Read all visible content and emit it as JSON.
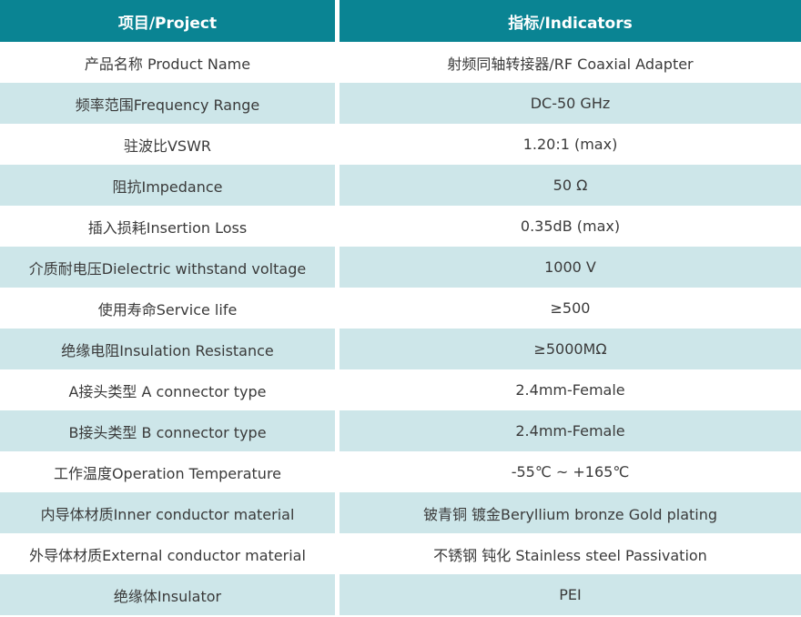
{
  "colors": {
    "header_bg": "#0a8493",
    "header_text": "#ffffff",
    "row_bg": "#ffffff",
    "row_alt_bg": "#cde6e9",
    "text": "#3a3a3a"
  },
  "table": {
    "columns": [
      {
        "label": "项目/Project"
      },
      {
        "label": "指标/Indicators"
      }
    ],
    "rows": [
      {
        "project": "产品名称 Product Name",
        "indicator": "射频同轴转接器/RF Coaxial Adapter"
      },
      {
        "project": "频率范围Frequency Range",
        "indicator": "DC-50 GHz"
      },
      {
        "project": "驻波比VSWR",
        "indicator": "1.20:1 (max)"
      },
      {
        "project": "阻抗Impedance",
        "indicator": "50 Ω"
      },
      {
        "project": "插入损耗Insertion Loss",
        "indicator": "0.35dB (max)"
      },
      {
        "project": "介质耐电压Dielectric withstand voltage",
        "indicator": "1000 V"
      },
      {
        "project": "使用寿命Service life",
        "indicator": "≥500"
      },
      {
        "project": "绝缘电阻Insulation Resistance",
        "indicator": "≥5000MΩ"
      },
      {
        "project": "A接头类型 A connector type",
        "indicator": "2.4mm-Female"
      },
      {
        "project": "B接头类型 B connector type",
        "indicator": "2.4mm-Female"
      },
      {
        "project": "工作温度Operation Temperature",
        "indicator": "-55℃ ~ +165℃"
      },
      {
        "project": "内导体材质Inner conductor material",
        "indicator": "铍青铜 镀金Beryllium bronze Gold plating"
      },
      {
        "project": "外导体材质External conductor material",
        "indicator": "不锈钢 钝化 Stainless steel Passivation"
      },
      {
        "project": "绝缘体Insulator",
        "indicator": "PEI"
      }
    ]
  }
}
